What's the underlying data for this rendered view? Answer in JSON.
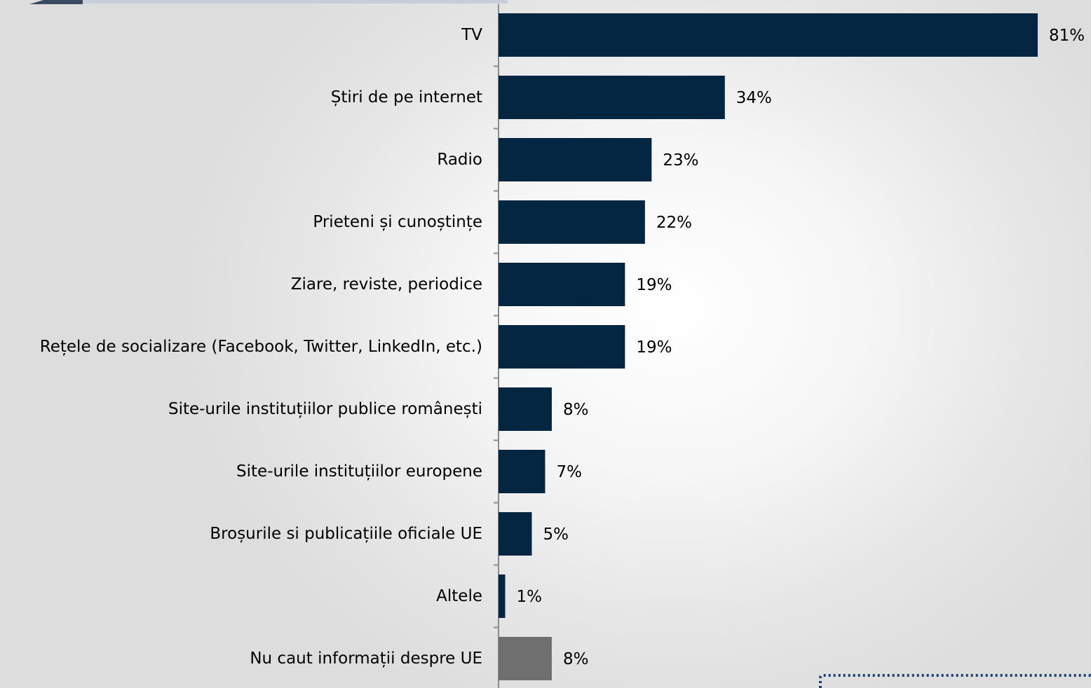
{
  "chart_data": {
    "type": "bar",
    "orientation": "horizontal",
    "categories": [
      "TV",
      "Știri de pe internet",
      "Radio",
      "Prieteni și cunoștințe",
      "Ziare, reviste, periodice",
      "Rețele de socializare (Facebook, Twitter, LinkedIn, etc.)",
      "Site-urile instituțiilor publice românești",
      "Site-urile instituțiilor europene",
      "Broșurile si publicațiile oficiale UE",
      "Altele",
      "Nu caut informații despre UE"
    ],
    "values": [
      81,
      34,
      23,
      22,
      19,
      19,
      8,
      7,
      5,
      1,
      8
    ],
    "value_labels": [
      "81%",
      "34%",
      "23%",
      "22%",
      "19%",
      "19%",
      "8%",
      "7%",
      "5%",
      "1%",
      "8%"
    ],
    "unit": "%",
    "xlim": [
      0,
      81
    ],
    "grid": false,
    "legend": "none",
    "colors": {
      "bar": "#052641",
      "bar_highlight": "#6f6f6f",
      "axis": "#8c8c8c",
      "header_band": "#c8ced8",
      "header_accent": "#3a4a63",
      "dotted_box": "#1f3f73"
    },
    "highlight_index": 10
  }
}
